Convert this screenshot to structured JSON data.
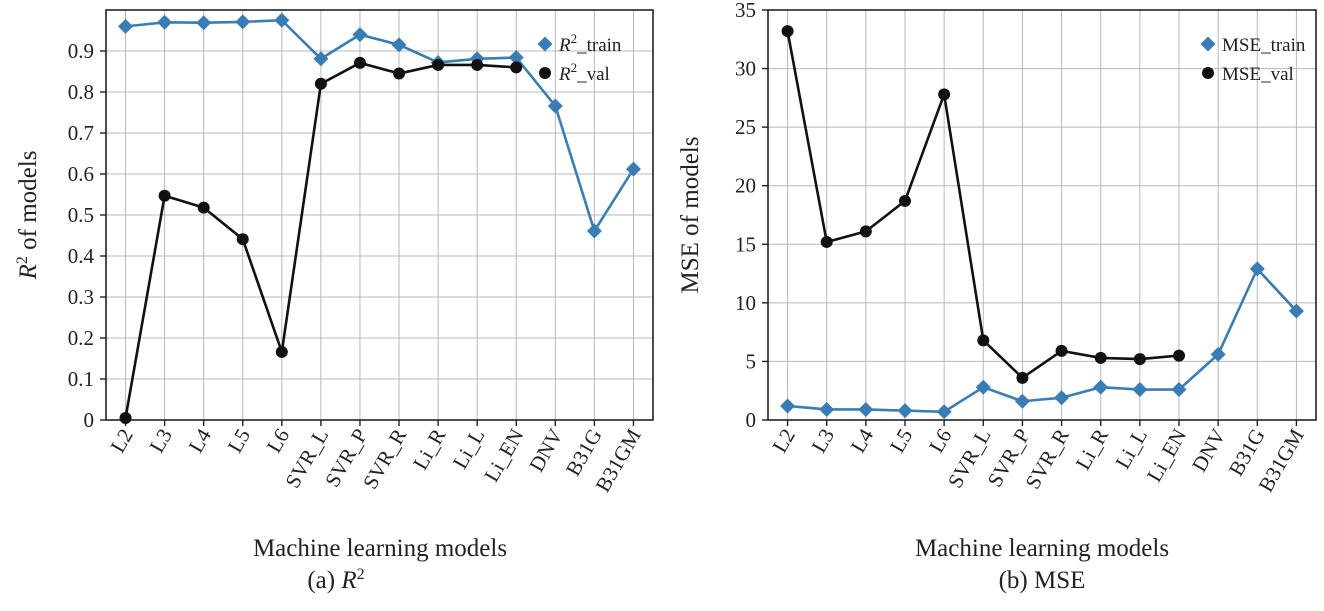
{
  "chart_data": [
    {
      "type": "line",
      "panel": "a",
      "caption_prefix": "(a) ",
      "caption_label": "R",
      "caption_sup": "2",
      "xlabel": "Machine learning models",
      "ylabel_main": "R",
      "ylabel_sup": "2",
      "ylabel_rest": " of models",
      "categories": [
        "L2",
        "L3",
        "L4",
        "L5",
        "L6",
        "SVR_L",
        "SVR_P",
        "SVR_R",
        "Li_R",
        "Li_L",
        "Li_EN",
        "DNV",
        "B31G",
        "B31GM"
      ],
      "ylim": [
        0,
        1.0
      ],
      "yticks": [
        0,
        0.1,
        0.2,
        0.3,
        0.4,
        0.5,
        0.6,
        0.7,
        0.8,
        0.9
      ],
      "ytick_labels": [
        "0",
        "0.1",
        "0.2",
        "0.3",
        "0.4",
        "0.5",
        "0.6",
        "0.7",
        "0.8",
        "0.9"
      ],
      "grid": true,
      "legend_position": "top-right",
      "series": [
        {
          "name": "R²_train",
          "legend_main": "R",
          "legend_sup": "2",
          "legend_rest": "_train",
          "marker": "diamond",
          "color": "#3a7db5",
          "values": [
            0.96,
            0.97,
            0.969,
            0.971,
            0.975,
            0.881,
            0.94,
            0.915,
            0.872,
            0.881,
            0.884,
            0.766,
            0.461,
            0.612
          ]
        },
        {
          "name": "R²_val",
          "legend_main": "R",
          "legend_sup": "2",
          "legend_rest": "_val",
          "marker": "circle",
          "color": "#111111",
          "values": [
            0.005,
            0.547,
            0.518,
            0.441,
            0.166,
            0.82,
            0.871,
            0.845,
            0.866,
            0.866,
            0.86,
            null,
            null,
            null
          ]
        }
      ]
    },
    {
      "type": "line",
      "panel": "b",
      "caption_prefix": "(b) ",
      "caption_label": "MSE",
      "caption_sup": "",
      "xlabel": "Machine learning models",
      "ylabel_main": "MSE of models",
      "ylabel_sup": "",
      "ylabel_rest": "",
      "categories": [
        "L2",
        "L3",
        "L4",
        "L5",
        "L6",
        "SVR_L",
        "SVR_P",
        "SVR_R",
        "Li_R",
        "Li_L",
        "Li_EN",
        "DNV",
        "B31G",
        "B31GM"
      ],
      "ylim": [
        0,
        35
      ],
      "yticks": [
        0,
        5,
        10,
        15,
        20,
        25,
        30,
        35
      ],
      "ytick_labels": [
        "0",
        "5",
        "10",
        "15",
        "20",
        "25",
        "30",
        "35"
      ],
      "grid": true,
      "legend_position": "top-right",
      "series": [
        {
          "name": "MSE_train",
          "legend_main": "MSE_train",
          "legend_sup": "",
          "legend_rest": "",
          "marker": "diamond",
          "color": "#3a7db5",
          "values": [
            1.2,
            0.9,
            0.9,
            0.8,
            0.7,
            2.8,
            1.6,
            1.9,
            2.8,
            2.6,
            2.6,
            5.6,
            12.9,
            9.3
          ]
        },
        {
          "name": "MSE_val",
          "legend_main": "MSE_val",
          "legend_sup": "",
          "legend_rest": "",
          "marker": "circle",
          "color": "#111111",
          "values": [
            33.2,
            15.2,
            16.1,
            18.7,
            27.8,
            6.8,
            3.6,
            5.9,
            5.3,
            5.2,
            5.5,
            null,
            null,
            null
          ]
        }
      ]
    }
  ]
}
